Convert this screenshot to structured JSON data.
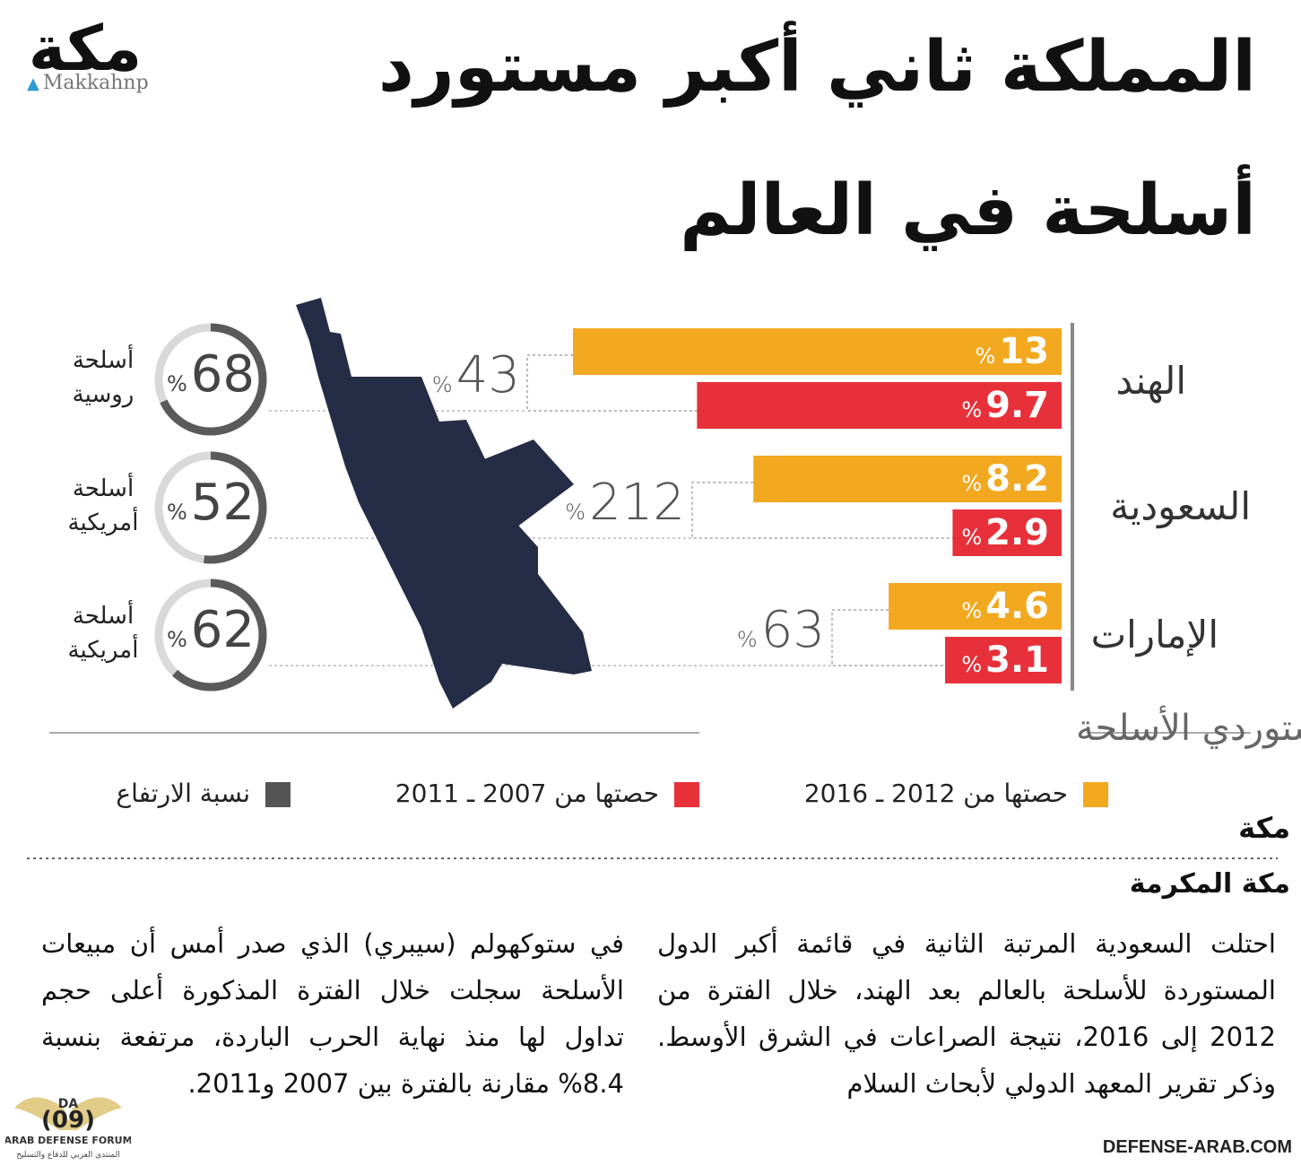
{
  "header": {
    "title_line1": "المملكة ثاني أكبر مستورد",
    "title_line2": "أسلحة في العالم",
    "logo_text": "مكة",
    "logo_handle": "Makkahnp"
  },
  "chart_data": {
    "type": "bar",
    "title": "أكبر مستوردي الأسلحة",
    "orientation": "horizontal",
    "categories": [
      "الهند",
      "السعودية",
      "الإمارات"
    ],
    "series": [
      {
        "name": "حصتها من 2012 ـ 2016",
        "values": [
          13,
          8.2,
          4.6
        ],
        "color": "#f2a81f"
      },
      {
        "name": "حصتها من 2007 ـ 2011",
        "values": [
          9.7,
          2.9,
          3.1
        ],
        "color": "#e8303a"
      }
    ],
    "increase_series": {
      "name": "نسبة الارتفاع",
      "values": [
        43,
        212,
        63
      ],
      "color": "#555555"
    },
    "supplier_share": [
      {
        "value": 68,
        "label_line1": "أسلحة",
        "label_line2": "روسية"
      },
      {
        "value": 52,
        "label_line1": "أسلحة",
        "label_line2": "أمريكية"
      },
      {
        "value": 62,
        "label_line1": "أسلحة",
        "label_line2": "أمريكية"
      }
    ],
    "unit": "%",
    "xlim": [
      0,
      13
    ]
  },
  "icons": {
    "weapon": "rifle-icon",
    "twitter": "twitter-bird-icon"
  },
  "article": {
    "city": "مكة",
    "region": "مكة المكرمة",
    "col_right": "احتلت السعودية المرتبة الثانية في قائمة أكبر الدول المستوردة للأسلحة بالعالم بعد الهند، خلال الفترة من 2012 إلى 2016، نتيجة الصراعات في الشرق الأوسط. وذكر تقرير المعهد الدولي لأبحاث السلام",
    "col_left": "في ستوكهولم (سيبري) الذي صدر أمس أن مبيعات الأسلحة سجلت خلال الفترة المذكورة أعلى حجم تداول لها منذ نهاية الحرب الباردة، مرتفعة بنسبة 8.4% مقارنة بالفترة بين 2007 و2011."
  },
  "watermark": {
    "forum_badge": "DA",
    "page_no": "(09)",
    "forum_en": "ARAB DEFENSE FORUM",
    "forum_ar": "المنتدى العربي للدفاع والتسليح",
    "site": "DEFENSE-ARAB.COM"
  }
}
